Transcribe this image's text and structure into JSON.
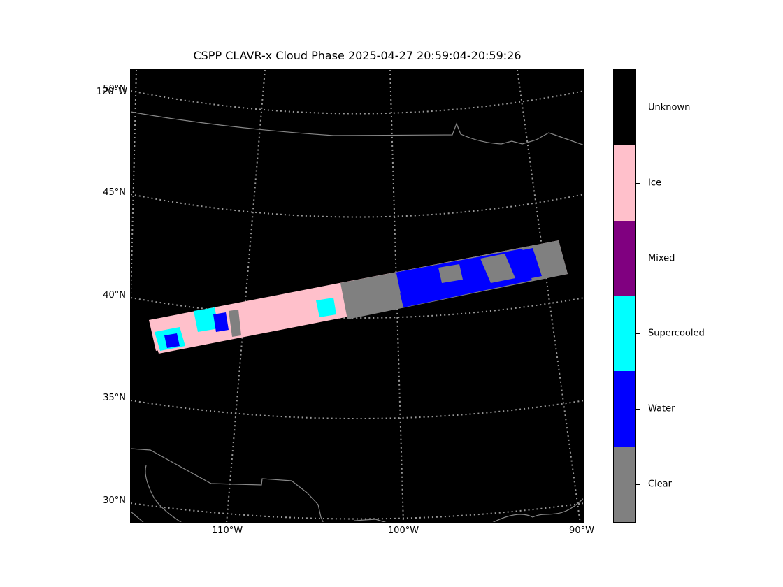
{
  "title": "CSPP CLAVR-x Cloud Phase 2025-04-27 20:59:04-20:59:26",
  "map": {
    "background_color": "#000000",
    "gridline_color": "#999999",
    "coastline_color": "#888888",
    "lat_labels": [
      "50°N",
      "45°N",
      "40°N",
      "35°N",
      "30°N"
    ],
    "lon_labels_bottom": [
      "110°W",
      "100°W",
      "90°W"
    ],
    "lon_label_top_left": "120°W"
  },
  "colorbar": {
    "categories": [
      {
        "label": "Unknown",
        "color": "#000000"
      },
      {
        "label": "Ice",
        "color": "#ffc0cb"
      },
      {
        "label": "Mixed",
        "color": "#800080"
      },
      {
        "label": "Supercooled",
        "color": "#00ffff"
      },
      {
        "label": "Water",
        "color": "#0000ff"
      },
      {
        "label": "Clear",
        "color": "#808080"
      }
    ]
  }
}
